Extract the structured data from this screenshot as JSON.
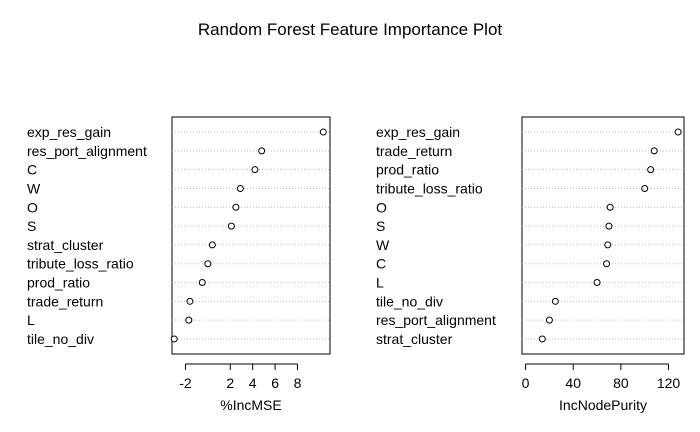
{
  "title": "Random Forest Feature Importance Plot",
  "chart_data": [
    {
      "type": "scatter",
      "xlabel": "%IncMSE",
      "xlim": [
        -3.2,
        10.9
      ],
      "xticks": [
        -2,
        2,
        4,
        6,
        8
      ],
      "grid": "dotted-horizontal",
      "features": [
        "exp_res_gain",
        "res_port_alignment",
        "C",
        "W",
        "O",
        "S",
        "strat_cluster",
        "tribute_loss_ratio",
        "prod_ratio",
        "trade_return",
        "L",
        "tile_no_div"
      ],
      "values": [
        10.3,
        4.8,
        4.2,
        2.9,
        2.5,
        2.1,
        0.4,
        0.0,
        -0.5,
        -1.6,
        -1.7,
        -3.0
      ]
    },
    {
      "type": "scatter",
      "xlabel": "IncNodePurity",
      "xlim": [
        -3,
        133
      ],
      "xticks": [
        0,
        40,
        80,
        120
      ],
      "grid": "dotted-horizontal",
      "features": [
        "exp_res_gain",
        "trade_return",
        "prod_ratio",
        "tribute_loss_ratio",
        "O",
        "S",
        "W",
        "C",
        "L",
        "tile_no_div",
        "res_port_alignment",
        "strat_cluster"
      ],
      "values": [
        128,
        108,
        105,
        100,
        71,
        70,
        69,
        68,
        60,
        25,
        20,
        14
      ]
    }
  ]
}
